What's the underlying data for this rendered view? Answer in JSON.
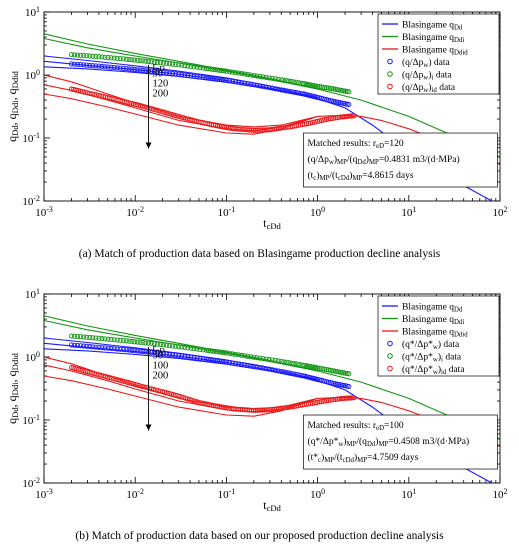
{
  "chart_data": [
    {
      "type": "line",
      "title": "",
      "xlabel": "t_cDd",
      "ylabel": "q_Dd, q_Ddi, q_Ddid",
      "x_scale": "log",
      "y_scale": "log",
      "xlim": [
        0.001,
        100
      ],
      "ylim": [
        0.01,
        10
      ],
      "x_ticks": [
        "10-3",
        "10-2",
        "10-1",
        "100",
        "101",
        "102"
      ],
      "y_ticks": [
        "10-2",
        "10-1",
        "100",
        "101"
      ],
      "legend_position": "top-right",
      "legend": [
        {
          "label": "Blasingame q_Dd",
          "kind": "line",
          "color": "#1a1aff"
        },
        {
          "label": "Blasingame q_Ddi",
          "kind": "line",
          "color": "#149614"
        },
        {
          "label": "Blasingame q_Ddid",
          "kind": "line",
          "color": "#e81a1a"
        },
        {
          "label": "(q/Δp_w) data",
          "kind": "marker",
          "color": "#1a1aff"
        },
        {
          "label": "(q/Δp_w)_i data",
          "kind": "marker",
          "color": "#149614"
        },
        {
          "label": "(q/Δp_w)_id data",
          "kind": "marker",
          "color": "#e81a1a"
        }
      ],
      "reD_label": "r_eD",
      "reD_values": [
        "50",
        "120",
        "200"
      ],
      "matched_box": [
        "Matched results: r_eD=120",
        "(q/Δp_w)_MP/(q_Dd)_MP=0.4831 m3/(d·MPa)",
        "(t_c)_MP/(t_cDd)_MP=4.8615 days"
      ],
      "series": [
        {
          "name": "Blasingame q_Dd",
          "color": "#1a1aff",
          "x": [
            0.001,
            0.003,
            0.01,
            0.03,
            0.1,
            0.3,
            1,
            2,
            4,
            10,
            30,
            100
          ],
          "y": [
            1.65,
            1.42,
            1.22,
            1.03,
            0.82,
            0.62,
            0.42,
            0.3,
            0.16,
            0.06,
            0.022,
            0.0085
          ]
        },
        {
          "name": "Blasingame q_Ddi",
          "color": "#149614",
          "x": [
            0.001,
            0.003,
            0.01,
            0.03,
            0.1,
            0.3,
            1,
            3,
            10,
            30,
            100
          ],
          "y": [
            3.8,
            2.7,
            2.0,
            1.55,
            1.15,
            0.85,
            0.6,
            0.4,
            0.22,
            0.11,
            0.05
          ]
        },
        {
          "name": "Blasingame q_Ddid",
          "color": "#e81a1a",
          "x": [
            1,
            2,
            3,
            5,
            10,
            30,
            100
          ],
          "y": [
            0.22,
            0.23,
            0.22,
            0.19,
            0.14,
            0.075,
            0.038
          ]
        },
        {
          "name": "Blasingame q_Dd r_eD=50",
          "color": "#1a1aff",
          "x": [
            0.001,
            0.003,
            0.01,
            0.03,
            0.1,
            0.3,
            1
          ],
          "y": [
            2.0,
            1.7,
            1.4,
            1.15,
            0.9,
            0.67,
            0.43
          ]
        },
        {
          "name": "Blasingame q_Dd r_eD=200",
          "color": "#1a1aff",
          "x": [
            0.001,
            0.003,
            0.01,
            0.03,
            0.1,
            0.3,
            1
          ],
          "y": [
            1.35,
            1.25,
            1.1,
            0.95,
            0.77,
            0.6,
            0.42
          ]
        },
        {
          "name": "Blasingame q_Ddi r_eD=50",
          "color": "#149614",
          "x": [
            0.001,
            0.003,
            0.01,
            0.03,
            0.1,
            0.3,
            1
          ],
          "y": [
            4.5,
            3.1,
            2.2,
            1.65,
            1.2,
            0.88,
            0.6
          ]
        },
        {
          "name": "Blasingame q_Ddid r_eD=50",
          "color": "#e81a1a",
          "x": [
            0.001,
            0.002,
            0.005,
            0.01,
            0.03,
            0.1,
            0.2,
            0.4,
            1
          ],
          "y": [
            1.0,
            0.78,
            0.5,
            0.36,
            0.22,
            0.16,
            0.15,
            0.16,
            0.22
          ]
        },
        {
          "name": "Blasingame q_Ddid r_eD=120",
          "color": "#e81a1a",
          "x": [
            0.001,
            0.002,
            0.005,
            0.01,
            0.03,
            0.1,
            0.2,
            0.4,
            1
          ],
          "y": [
            0.7,
            0.57,
            0.4,
            0.3,
            0.19,
            0.14,
            0.13,
            0.15,
            0.22
          ]
        },
        {
          "name": "Blasingame q_Ddid r_eD=200",
          "color": "#e81a1a",
          "x": [
            0.001,
            0.002,
            0.005,
            0.01,
            0.03,
            0.1,
            0.2,
            0.4,
            1
          ],
          "y": [
            0.5,
            0.42,
            0.31,
            0.24,
            0.16,
            0.12,
            0.115,
            0.14,
            0.22
          ]
        },
        {
          "name": "(q/Δp_w) data",
          "color": "#1a1aff",
          "kind": "markers",
          "x": [
            0.002,
            0.004,
            0.008,
            0.015,
            0.03,
            0.06,
            0.1,
            0.2,
            0.4,
            0.7,
            1.0,
            1.5,
            2.2
          ],
          "y": [
            1.5,
            1.38,
            1.26,
            1.15,
            1.03,
            0.9,
            0.82,
            0.7,
            0.58,
            0.5,
            0.44,
            0.38,
            0.34
          ]
        },
        {
          "name": "(q/Δp_w)_i data",
          "color": "#149614",
          "kind": "markers",
          "x": [
            0.002,
            0.004,
            0.008,
            0.015,
            0.03,
            0.06,
            0.1,
            0.2,
            0.4,
            0.7,
            1.0,
            1.5,
            2.2
          ],
          "y": [
            2.1,
            1.95,
            1.78,
            1.62,
            1.45,
            1.27,
            1.15,
            0.98,
            0.84,
            0.73,
            0.66,
            0.6,
            0.54
          ]
        },
        {
          "name": "(q/Δp_w)_id data",
          "color": "#e81a1a",
          "kind": "markers",
          "x": [
            0.002,
            0.003,
            0.005,
            0.008,
            0.012,
            0.02,
            0.03,
            0.05,
            0.08,
            0.12,
            0.2,
            0.3,
            0.5,
            0.8,
            1.2,
            1.8,
            2.5
          ],
          "y": [
            0.6,
            0.52,
            0.44,
            0.37,
            0.32,
            0.26,
            0.22,
            0.18,
            0.155,
            0.14,
            0.132,
            0.135,
            0.15,
            0.17,
            0.195,
            0.215,
            0.225
          ]
        }
      ]
    },
    {
      "type": "line",
      "title": "",
      "xlabel": "t_cDd",
      "ylabel": "q_Dd, q_Ddi, q_Ddid",
      "x_scale": "log",
      "y_scale": "log",
      "xlim": [
        0.001,
        100
      ],
      "ylim": [
        0.01,
        10
      ],
      "x_ticks": [
        "10-3",
        "10-2",
        "10-1",
        "100",
        "101",
        "102"
      ],
      "y_ticks": [
        "10-2",
        "10-1",
        "100",
        "101"
      ],
      "legend_position": "top-right",
      "legend": [
        {
          "label": "Blasingame q_Dd",
          "kind": "line",
          "color": "#1a1aff"
        },
        {
          "label": "Blasingame q_Ddi",
          "kind": "line",
          "color": "#149614"
        },
        {
          "label": "Blasingame q_Ddid",
          "kind": "line",
          "color": "#e81a1a"
        },
        {
          "label": "(q*/Δp*_w) data",
          "kind": "marker",
          "color": "#1a1aff"
        },
        {
          "label": "(q*/Δp*_w)_i data",
          "kind": "marker",
          "color": "#149614"
        },
        {
          "label": "(q*/Δp*_w)_id data",
          "kind": "marker",
          "color": "#e81a1a"
        }
      ],
      "reD_label": "r_eD",
      "reD_values": [
        "50",
        "100",
        "200"
      ],
      "matched_box": [
        "Matched results: r_eD=100",
        "(q*/Δp*_w)_MP/(q_Dd)_MP=0.4508 m3/(d·MPa)",
        "(t*_c)_MP/(t_cDd)_MP=4.7509 days"
      ],
      "series": [
        {
          "name": "Blasingame q_Dd",
          "color": "#1a1aff",
          "x": [
            0.001,
            0.003,
            0.01,
            0.03,
            0.1,
            0.3,
            1,
            2,
            4,
            10,
            30,
            100
          ],
          "y": [
            1.65,
            1.42,
            1.22,
            1.03,
            0.82,
            0.62,
            0.42,
            0.3,
            0.16,
            0.06,
            0.022,
            0.0085
          ]
        },
        {
          "name": "Blasingame q_Ddi",
          "color": "#149614",
          "x": [
            0.001,
            0.003,
            0.01,
            0.03,
            0.1,
            0.3,
            1,
            3,
            10,
            30,
            100
          ],
          "y": [
            3.8,
            2.7,
            2.0,
            1.55,
            1.15,
            0.85,
            0.6,
            0.4,
            0.22,
            0.11,
            0.05
          ]
        },
        {
          "name": "Blasingame q_Ddid",
          "color": "#e81a1a",
          "x": [
            1,
            2,
            3,
            5,
            10,
            30,
            100
          ],
          "y": [
            0.22,
            0.23,
            0.22,
            0.19,
            0.14,
            0.075,
            0.038
          ]
        },
        {
          "name": "Blasingame q_Dd r_eD=50",
          "color": "#1a1aff",
          "x": [
            0.001,
            0.003,
            0.01,
            0.03,
            0.1,
            0.3,
            1
          ],
          "y": [
            2.0,
            1.7,
            1.4,
            1.15,
            0.9,
            0.67,
            0.43
          ]
        },
        {
          "name": "Blasingame q_Dd r_eD=200",
          "color": "#1a1aff",
          "x": [
            0.001,
            0.003,
            0.01,
            0.03,
            0.1,
            0.3,
            1
          ],
          "y": [
            1.35,
            1.25,
            1.1,
            0.95,
            0.77,
            0.6,
            0.42
          ]
        },
        {
          "name": "Blasingame q_Ddi r_eD=50",
          "color": "#149614",
          "x": [
            0.001,
            0.003,
            0.01,
            0.03,
            0.1,
            0.3,
            1
          ],
          "y": [
            4.5,
            3.1,
            2.2,
            1.65,
            1.2,
            0.88,
            0.6
          ]
        },
        {
          "name": "Blasingame q_Ddid r_eD=50",
          "color": "#e81a1a",
          "x": [
            0.001,
            0.002,
            0.005,
            0.01,
            0.03,
            0.1,
            0.2,
            0.4,
            1
          ],
          "y": [
            1.0,
            0.78,
            0.5,
            0.36,
            0.22,
            0.16,
            0.15,
            0.16,
            0.22
          ]
        },
        {
          "name": "Blasingame q_Ddid r_eD=100",
          "color": "#e81a1a",
          "x": [
            0.001,
            0.002,
            0.005,
            0.01,
            0.03,
            0.1,
            0.2,
            0.4,
            1
          ],
          "y": [
            0.75,
            0.6,
            0.42,
            0.31,
            0.2,
            0.145,
            0.135,
            0.15,
            0.22
          ]
        },
        {
          "name": "Blasingame q_Ddid r_eD=200",
          "color": "#e81a1a",
          "x": [
            0.001,
            0.002,
            0.005,
            0.01,
            0.03,
            0.1,
            0.2,
            0.4,
            1
          ],
          "y": [
            0.5,
            0.42,
            0.31,
            0.24,
            0.16,
            0.12,
            0.115,
            0.14,
            0.22
          ]
        },
        {
          "name": "(q*/Δp*_w) data",
          "color": "#1a1aff",
          "kind": "markers",
          "x": [
            0.002,
            0.004,
            0.008,
            0.015,
            0.03,
            0.06,
            0.1,
            0.2,
            0.4,
            0.7,
            1.0,
            1.5,
            2.2
          ],
          "y": [
            1.55,
            1.42,
            1.3,
            1.18,
            1.05,
            0.92,
            0.83,
            0.71,
            0.59,
            0.5,
            0.44,
            0.38,
            0.34
          ]
        },
        {
          "name": "(q*/Δp*_w)_i data",
          "color": "#149614",
          "kind": "markers",
          "x": [
            0.002,
            0.004,
            0.008,
            0.015,
            0.03,
            0.06,
            0.1,
            0.2,
            0.4,
            0.7,
            1.0,
            1.5,
            2.2
          ],
          "y": [
            2.15,
            1.98,
            1.8,
            1.64,
            1.46,
            1.28,
            1.16,
            0.99,
            0.85,
            0.74,
            0.67,
            0.6,
            0.54
          ]
        },
        {
          "name": "(q*/Δp*_w)_id data",
          "color": "#e81a1a",
          "kind": "markers",
          "x": [
            0.002,
            0.003,
            0.005,
            0.008,
            0.012,
            0.02,
            0.03,
            0.05,
            0.08,
            0.12,
            0.2,
            0.3,
            0.5,
            0.8,
            1.2,
            1.8,
            2.5
          ],
          "y": [
            0.68,
            0.58,
            0.48,
            0.4,
            0.34,
            0.28,
            0.24,
            0.19,
            0.165,
            0.15,
            0.142,
            0.145,
            0.16,
            0.18,
            0.2,
            0.218,
            0.226
          ]
        }
      ]
    }
  ],
  "captions": [
    "(a)  Match of production data based on Blasingame production decline analysis",
    "(b)  Match of production data based on our proposed production decline analysis"
  ]
}
